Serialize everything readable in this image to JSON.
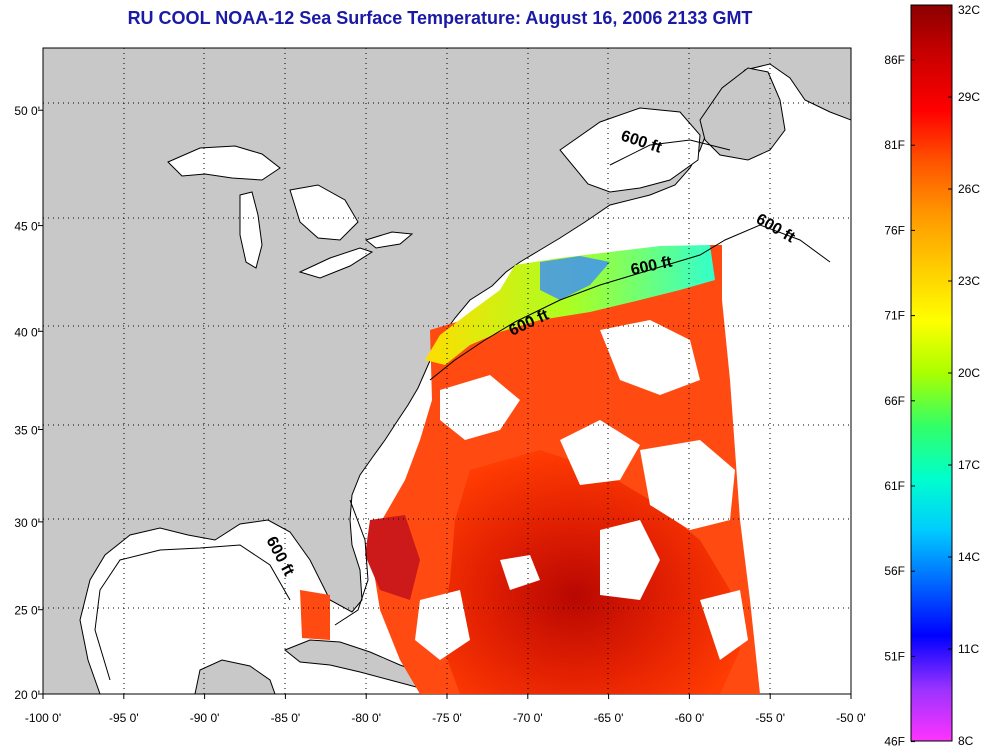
{
  "title": "RU COOL  NOAA-12  Sea Surface Temperature:  August 16, 2006 2133 GMT",
  "map": {
    "lon_range": [
      -100,
      -50
    ],
    "lat_range": [
      20,
      52.5
    ],
    "lon_ticks": [
      "-100 0'",
      "-95 0'",
      "-90 0'",
      "-85 0'",
      "-80 0'",
      "-75 0'",
      "-70 0'",
      "-65 0'",
      "-60 0'",
      "-55 0'",
      "-50 0'"
    ],
    "lat_ticks": [
      "50 0'",
      "45 0'",
      "40 0'",
      "35 0'",
      "30 0'",
      "25 0'",
      "20 0'"
    ],
    "grid": "dotted",
    "land_color": "#c8c8c8",
    "cloud_color": "#ffffff",
    "contour_label": "600 ft"
  },
  "colorbar": {
    "fahrenheit_labels": [
      "86F",
      "81F",
      "76F",
      "71F",
      "66F",
      "61F",
      "56F",
      "51F",
      "46F"
    ],
    "celsius_labels": [
      "32C",
      "29C",
      "26C",
      "23C",
      "20C",
      "17C",
      "14C",
      "11C",
      "8C"
    ],
    "colors": [
      "#ff33ff",
      "#9933ff",
      "#0000ff",
      "#0066ff",
      "#00ccff",
      "#00ffcc",
      "#33ff66",
      "#aaff00",
      "#ffff00",
      "#ffcc00",
      "#ff9900",
      "#ff5500",
      "#ff0000",
      "#cc0000",
      "#8b0000"
    ]
  }
}
